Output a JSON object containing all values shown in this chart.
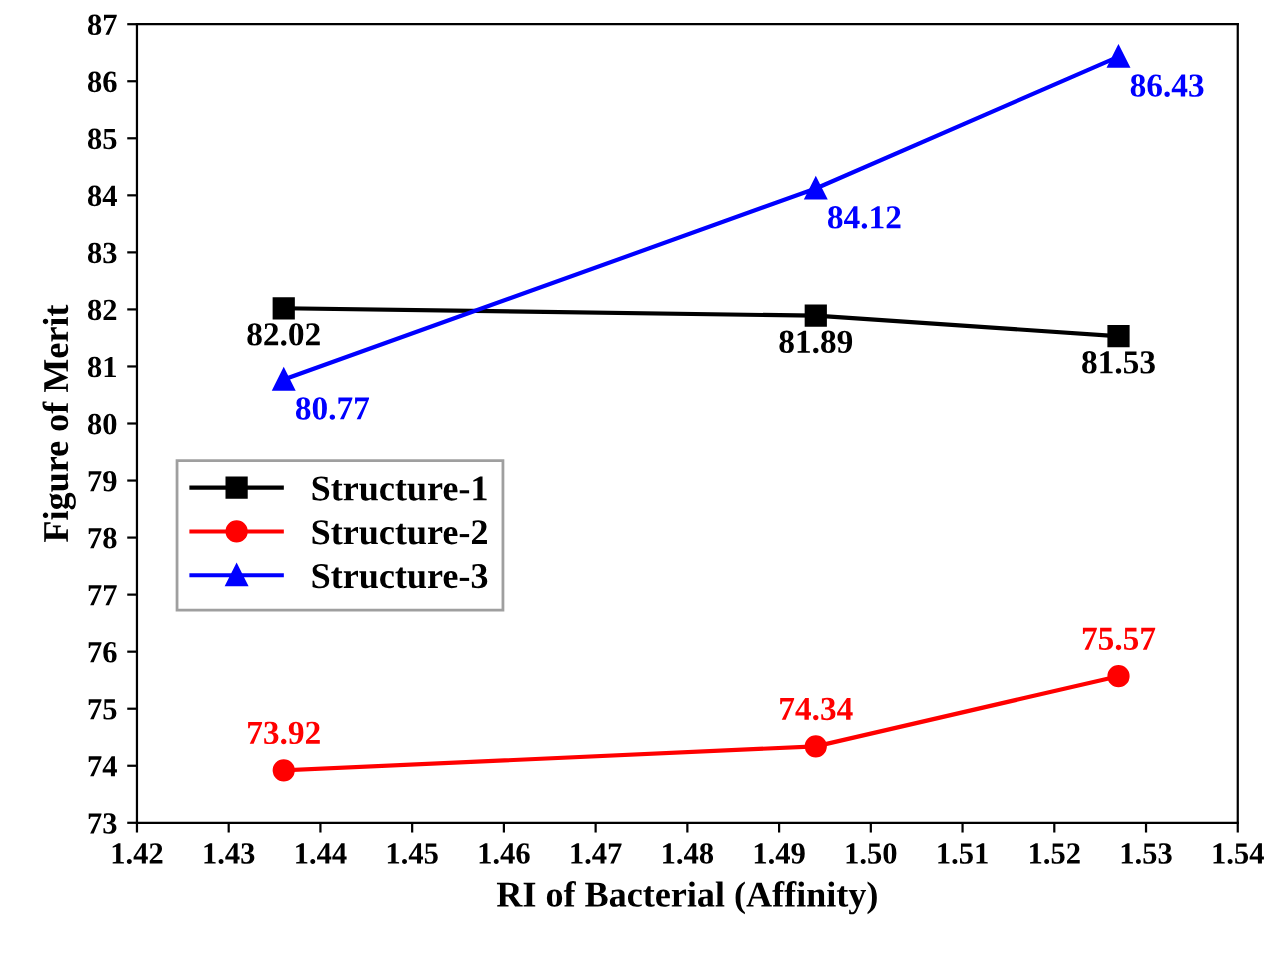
{
  "chart_data": {
    "type": "line",
    "xlabel": "RI of Bacterial (Affinity)",
    "ylabel": "Figure of Merit",
    "x": [
      1.436,
      1.494,
      1.527
    ],
    "series": [
      {
        "name": "Structure-1",
        "color": "#000000",
        "values": [
          82.02,
          81.89,
          81.53
        ],
        "marker": "square"
      },
      {
        "name": "Structure-2",
        "color": "#ff0000",
        "values": [
          73.92,
          74.34,
          75.57
        ],
        "marker": "circle"
      },
      {
        "name": "Structure-3",
        "color": "#0000ff",
        "values": [
          80.77,
          84.12,
          86.43
        ],
        "marker": "triangle"
      }
    ],
    "xlim": [
      1.42,
      1.54
    ],
    "xticks": [
      {
        "value": 1.42,
        "label": "1.42"
      },
      {
        "value": 1.43,
        "label": "1.43"
      },
      {
        "value": 1.44,
        "label": "1.44"
      },
      {
        "value": 1.45,
        "label": "1.45"
      },
      {
        "value": 1.46,
        "label": "1.46"
      },
      {
        "value": 1.47,
        "label": "1.47"
      },
      {
        "value": 1.48,
        "label": "1.48"
      },
      {
        "value": 1.49,
        "label": "1.49"
      },
      {
        "value": 1.5,
        "label": "1.50"
      },
      {
        "value": 1.51,
        "label": "1.51"
      },
      {
        "value": 1.52,
        "label": "1.52"
      },
      {
        "value": 1.53,
        "label": "1.53"
      },
      {
        "value": 1.54,
        "label": "1.54"
      }
    ],
    "ylim": [
      73,
      87
    ],
    "yticks": [
      73,
      74,
      75,
      76,
      77,
      78,
      79,
      80,
      81,
      82,
      83,
      84,
      85,
      86,
      87
    ],
    "data_labels": true,
    "legend": "left",
    "grid": false,
    "line_style": "solid"
  }
}
